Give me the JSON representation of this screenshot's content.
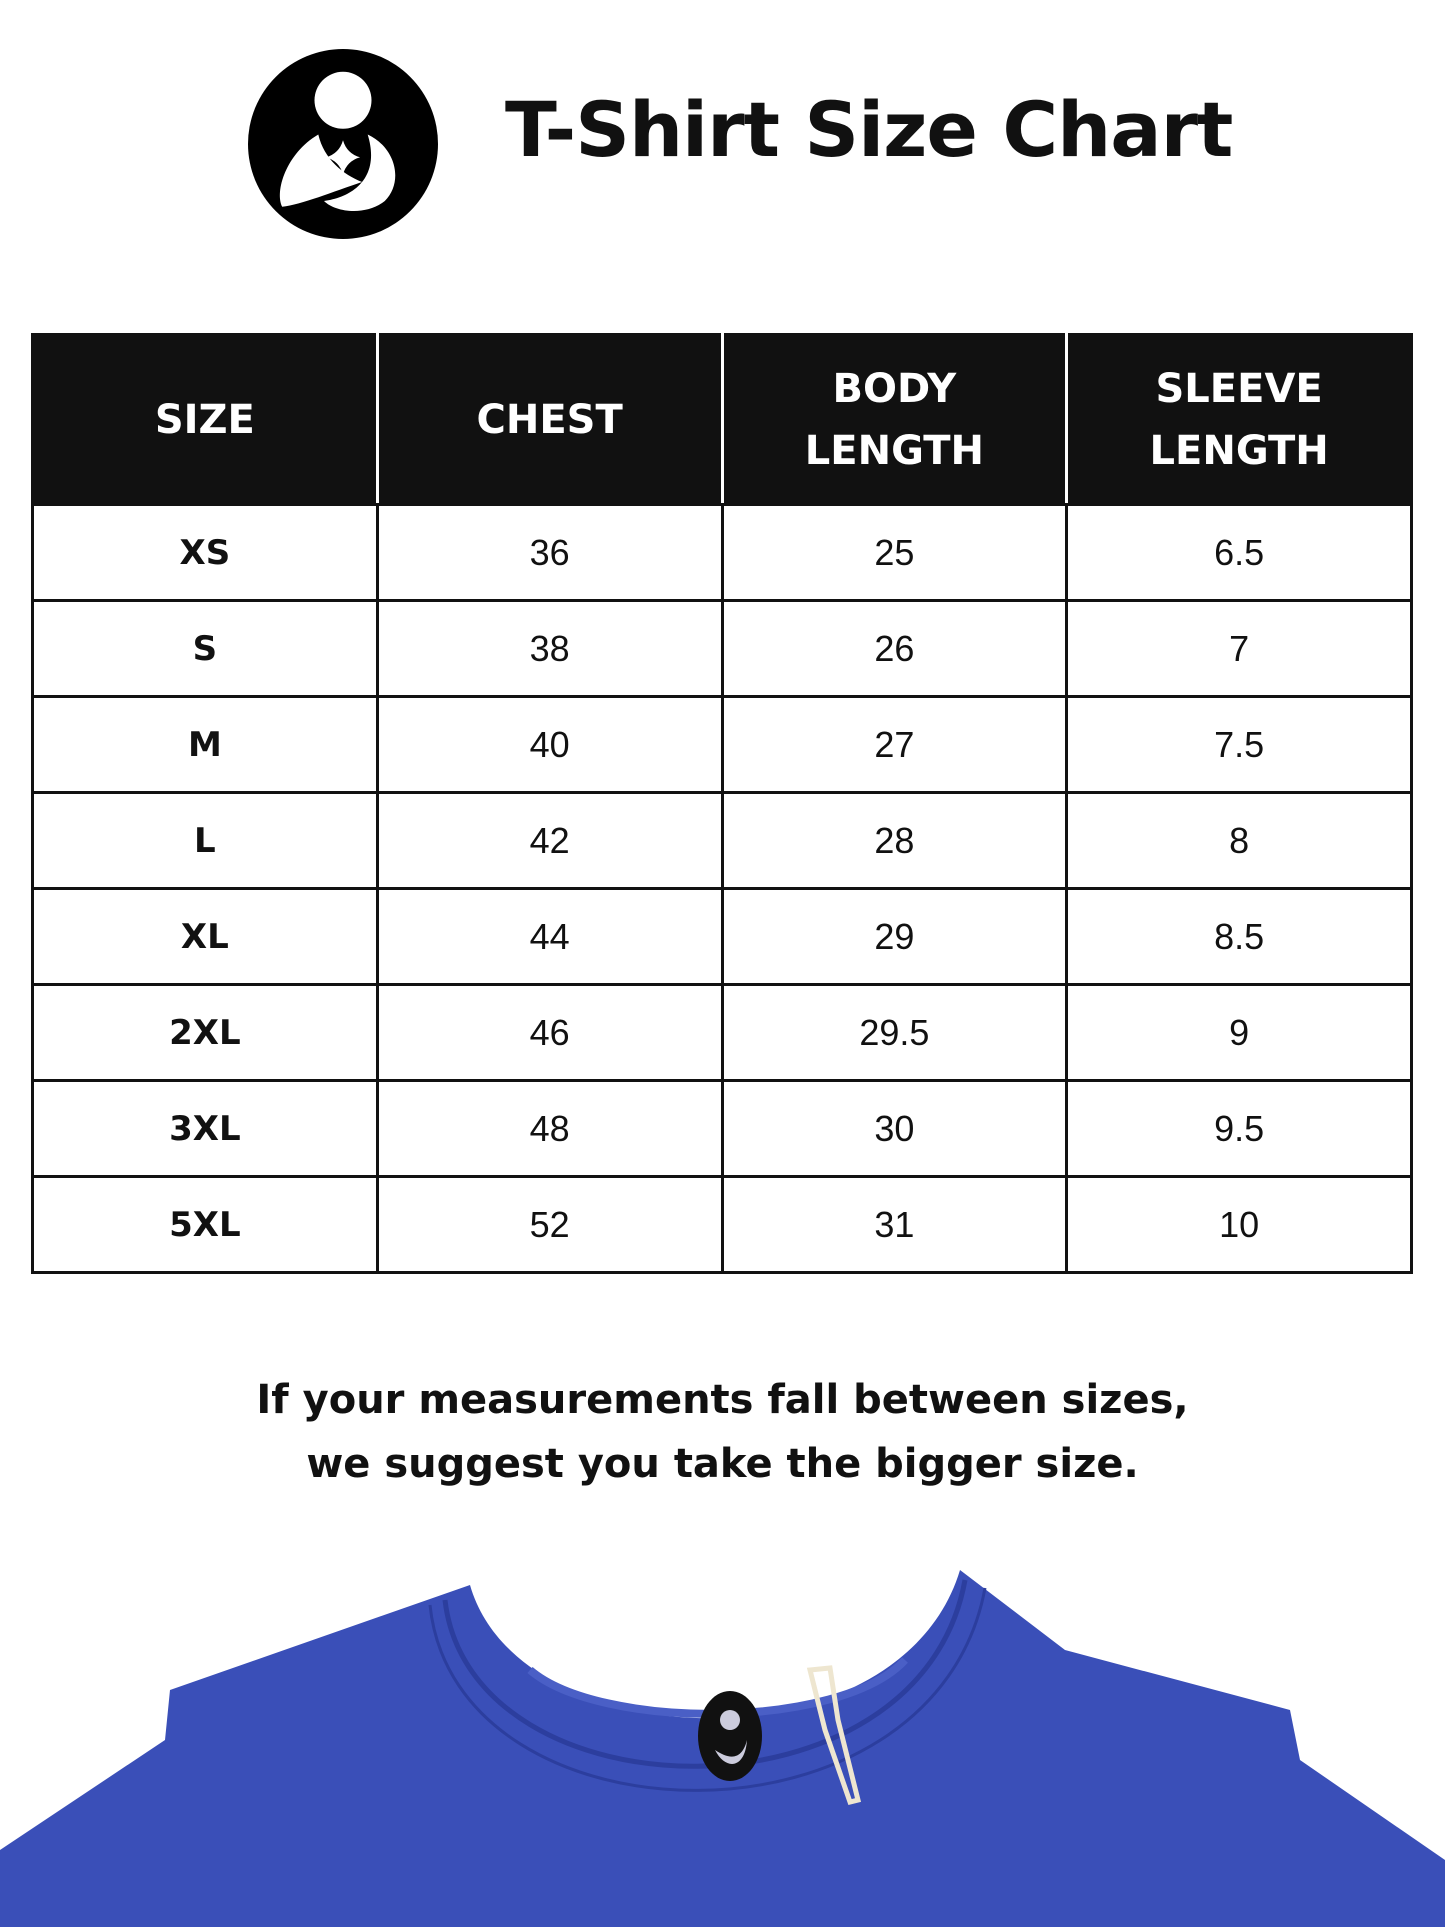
{
  "header": {
    "title": "T-Shirt Size Chart",
    "logo_icon": "mother-child-logo-icon"
  },
  "table": {
    "columns": [
      "SIZE",
      "CHEST",
      "BODY LENGTH",
      "SLEEVE LENGTH"
    ],
    "column_lines": [
      [
        "SIZE"
      ],
      [
        "CHEST"
      ],
      [
        "BODY",
        "LENGTH"
      ],
      [
        "SLEEVE",
        "LENGTH"
      ]
    ],
    "rows": [
      [
        "XS",
        "36",
        "25",
        "6.5"
      ],
      [
        "S",
        "38",
        "26",
        "7"
      ],
      [
        "M",
        "40",
        "27",
        "7.5"
      ],
      [
        "L",
        "42",
        "28",
        "8"
      ],
      [
        "XL",
        "44",
        "29",
        "8.5"
      ],
      [
        "2XL",
        "46",
        "29.5",
        "9"
      ],
      [
        "3XL",
        "48",
        "30",
        "9.5"
      ],
      [
        "5XL",
        "52",
        "31",
        "10"
      ]
    ]
  },
  "note": {
    "line1": "If your measurements fall between sizes,",
    "line2": "we suggest you take the bigger size."
  },
  "colors": {
    "header_bg": "#111111",
    "shirt": "#3a4fb8"
  }
}
